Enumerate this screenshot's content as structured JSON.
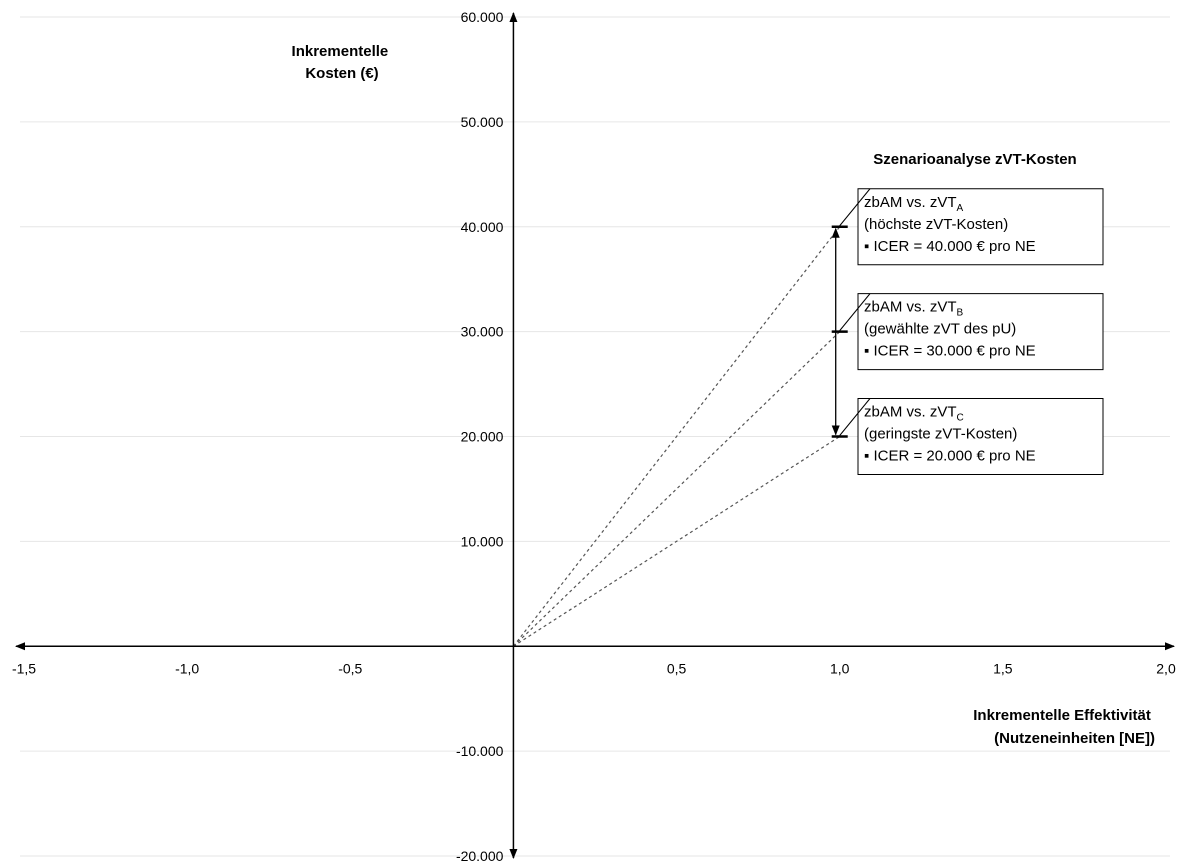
{
  "chart_data": {
    "type": "scatter",
    "title": "Szenarioanalyse zVT-Kosten",
    "xlabel": [
      "Inkrementelle Effektivität",
      "(Nutzeneinheiten [NE])"
    ],
    "ylabel": [
      "Inkrementelle",
      "Kosten (€)"
    ],
    "xlim": [
      -1.5,
      2.0
    ],
    "ylim": [
      -20000,
      60000
    ],
    "x_ticks": [
      {
        "value": -1.5,
        "label": "-1,5"
      },
      {
        "value": -1.0,
        "label": "-1,0"
      },
      {
        "value": -0.5,
        "label": "-0,5"
      },
      {
        "value": 0.5,
        "label": "0,5"
      },
      {
        "value": 1.0,
        "label": "1,0"
      },
      {
        "value": 1.5,
        "label": "1,5"
      },
      {
        "value": 2.0,
        "label": "2,0"
      }
    ],
    "y_ticks": [
      {
        "value": 60000,
        "label": "60.000"
      },
      {
        "value": 50000,
        "label": "50.000"
      },
      {
        "value": 40000,
        "label": "40.000"
      },
      {
        "value": 30000,
        "label": "30.000"
      },
      {
        "value": 20000,
        "label": "20.000"
      },
      {
        "value": 10000,
        "label": "10.000"
      },
      {
        "value": -10000,
        "label": "-10.000"
      },
      {
        "value": -20000,
        "label": "-20.000"
      }
    ],
    "grid": true,
    "origin": {
      "x": 0,
      "y": 0
    },
    "points": [
      {
        "id": "A",
        "x": 1.0,
        "y": 40000,
        "line1_pre": "zbAM vs. zVT",
        "line1_sub": "A",
        "line2": "(höchste zVT-Kosten)",
        "line3": "▪ ICER = 40.000 € pro NE"
      },
      {
        "id": "B",
        "x": 1.0,
        "y": 30000,
        "line1_pre": "zbAM vs. zVT",
        "line1_sub": "B",
        "line2": "(gewählte zVT des pU)",
        "line3": "▪ ICER = 30.000 € pro NE"
      },
      {
        "id": "C",
        "x": 1.0,
        "y": 20000,
        "line1_pre": "zbAM vs. zVT",
        "line1_sub": "C",
        "line2": "(geringste zVT-Kosten)",
        "line3": "▪ ICER = 20.000 € pro NE"
      }
    ],
    "colors": {
      "axis": "#000000",
      "grid": "#e6e6e6",
      "dashed": "#555555"
    }
  }
}
